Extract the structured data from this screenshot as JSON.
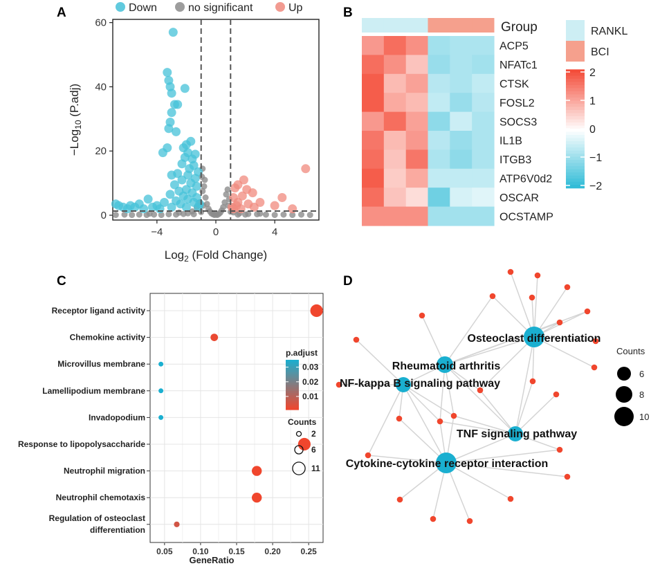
{
  "panels": {
    "a": "A",
    "b": "B",
    "c": "C",
    "d": "D"
  },
  "colors": {
    "down": "#45c1d8",
    "ns": "#8c8c8c",
    "up": "#f08a7e",
    "heat_low": "#1cb5d3",
    "heat_high": "#f3432f",
    "rankl": "#cdeef4",
    "bci": "#f5a08d",
    "node_red": "#f0462d",
    "node_blue": "#1aafd0",
    "edge": "#d4d4d4"
  },
  "chart_data": [
    {
      "type": "scatter",
      "panel": "A",
      "title": "",
      "xlabel_prefix": "Log",
      "xlabel_sub": "2",
      "xlabel_suffix": " (Fold Change)",
      "ylabel_prefix": "−Log",
      "ylabel_sub": "10",
      "ylabel_suffix": " (P.adj)",
      "xlim": [
        -7,
        7
      ],
      "ylim": [
        -1.5,
        61
      ],
      "xticks": [
        -4,
        0,
        4
      ],
      "xtick_labels": [
        "−4",
        "0",
        "4"
      ],
      "yticks": [
        0,
        20,
        40,
        60
      ],
      "ytick_labels": [
        "0",
        "20",
        "40",
        "60"
      ],
      "vlines": [
        -1,
        1
      ],
      "hline": 1.3,
      "legend": [
        {
          "key": "down",
          "label": "Down"
        },
        {
          "key": "ns",
          "label": "no significant"
        },
        {
          "key": "up",
          "label": "Up"
        }
      ],
      "series": [
        {
          "name": "Down",
          "color_key": "down",
          "points": [
            [
              -2.9,
              57
            ],
            [
              -3.3,
              44.5
            ],
            [
              -3.1,
              40
            ],
            [
              -3.0,
              38
            ],
            [
              -3.2,
              42
            ],
            [
              -2.1,
              39.5
            ],
            [
              -2.6,
              34.5
            ],
            [
              -2.8,
              34.5
            ],
            [
              -3.0,
              32
            ],
            [
              -3.1,
              29
            ],
            [
              -3.2,
              27
            ],
            [
              -2.7,
              26
            ],
            [
              -3.6,
              19.5
            ],
            [
              -3.3,
              21
            ],
            [
              -2.2,
              21
            ],
            [
              -1.9,
              19.5
            ],
            [
              -2.1,
              18
            ],
            [
              -1.7,
              23
            ],
            [
              -2.0,
              22
            ],
            [
              -1.6,
              17.5
            ],
            [
              -1.4,
              19
            ],
            [
              -2.3,
              16
            ],
            [
              -1.5,
              15.5
            ],
            [
              -1.8,
              14.5
            ],
            [
              -1.2,
              13.5
            ],
            [
              -2.6,
              13
            ],
            [
              -3.0,
              12.5
            ],
            [
              -1.9,
              12.5
            ],
            [
              -1.4,
              11.5
            ],
            [
              -2.3,
              11
            ],
            [
              -1.7,
              10
            ],
            [
              -2.8,
              9.5
            ],
            [
              -1.3,
              9
            ],
            [
              -2.0,
              8
            ],
            [
              -2.5,
              7.5
            ],
            [
              -1.6,
              7
            ],
            [
              -3.1,
              6.5
            ],
            [
              -2.2,
              6
            ],
            [
              -1.3,
              5.5
            ],
            [
              -1.9,
              5
            ],
            [
              -2.7,
              4.5
            ],
            [
              -3.5,
              4
            ],
            [
              -1.5,
              4
            ],
            [
              -2.4,
              3.5
            ],
            [
              -4.6,
              5
            ],
            [
              -5.2,
              3.5
            ],
            [
              -5.8,
              3
            ],
            [
              -6.3,
              2.5
            ],
            [
              -6.6,
              3
            ],
            [
              -6.0,
              2
            ],
            [
              -4.0,
              3
            ],
            [
              -3.8,
              2
            ],
            [
              -4.3,
              2.5
            ],
            [
              -3.0,
              2.5
            ],
            [
              -2.0,
              2.5
            ],
            [
              -1.2,
              2.5
            ],
            [
              -5.5,
              2.5
            ],
            [
              -4.9,
              2
            ],
            [
              -6.8,
              3.5
            ],
            [
              -1.1,
              3.5
            ]
          ]
        },
        {
          "name": "no significant",
          "color_key": "ns",
          "points": [
            [
              -6.8,
              0.1
            ],
            [
              -6.2,
              0.2
            ],
            [
              -5.7,
              0.1
            ],
            [
              -5.2,
              0.2
            ],
            [
              -4.7,
              0.1
            ],
            [
              -4.2,
              0.2
            ],
            [
              -3.7,
              0.1
            ],
            [
              -3.2,
              0.3
            ],
            [
              -2.7,
              0.2
            ],
            [
              -2.2,
              0.4
            ],
            [
              -1.9,
              0.6
            ],
            [
              -1.6,
              1.2
            ],
            [
              -1.3,
              2.5
            ],
            [
              -1.1,
              4
            ],
            [
              -0.9,
              7.5
            ],
            [
              -0.8,
              9
            ],
            [
              -0.7,
              5.5
            ],
            [
              -0.6,
              3.5
            ],
            [
              -0.5,
              2
            ],
            [
              -0.4,
              1.2
            ],
            [
              -0.3,
              0.6
            ],
            [
              -0.2,
              0.3
            ],
            [
              -0.1,
              0.1
            ],
            [
              0.0,
              0.2
            ],
            [
              0.1,
              0.1
            ],
            [
              0.2,
              0.4
            ],
            [
              0.3,
              0.8
            ],
            [
              0.4,
              1.5
            ],
            [
              0.5,
              2.5
            ],
            [
              0.6,
              4
            ],
            [
              0.7,
              6.5
            ],
            [
              0.8,
              8
            ],
            [
              0.9,
              5
            ],
            [
              1.2,
              0.9
            ],
            [
              1.6,
              0.6
            ],
            [
              2.2,
              0.4
            ],
            [
              2.8,
              0.3
            ],
            [
              3.4,
              0.2
            ],
            [
              4.0,
              0.1
            ],
            [
              4.6,
              0.2
            ],
            [
              5.2,
              0.1
            ],
            [
              5.8,
              0.2
            ],
            [
              6.4,
              0.1
            ],
            [
              -1.0,
              1.0
            ],
            [
              1.0,
              1.1
            ],
            [
              -0.85,
              3
            ],
            [
              0.85,
              3
            ],
            [
              -2.5,
              0.8
            ],
            [
              2.0,
              0.2
            ],
            [
              -4.5,
              0.5
            ],
            [
              3.0,
              0.5
            ],
            [
              -1.5,
              0.3
            ],
            [
              1.5,
              0.2
            ],
            [
              -0.95,
              12
            ],
            [
              -0.9,
              14.5
            ],
            [
              -0.75,
              11
            ]
          ]
        },
        {
          "name": "Up",
          "color_key": "up",
          "points": [
            [
              6.1,
              14.5
            ],
            [
              1.9,
              11
            ],
            [
              1.5,
              9.5
            ],
            [
              2.1,
              8
            ],
            [
              2.5,
              7
            ],
            [
              1.3,
              8.5
            ],
            [
              1.8,
              6
            ],
            [
              1.2,
              5.5
            ],
            [
              1.5,
              4
            ],
            [
              2.2,
              3.5
            ],
            [
              3.0,
              4
            ],
            [
              4.5,
              5.5
            ],
            [
              4.0,
              3
            ],
            [
              5.2,
              2
            ],
            [
              1.4,
              3
            ],
            [
              1.1,
              2.5
            ],
            [
              1.7,
              2
            ],
            [
              1.2,
              2
            ],
            [
              2.6,
              2.5
            ]
          ]
        }
      ]
    },
    {
      "type": "heatmap",
      "panel": "B",
      "title": "",
      "rows": [
        "ACP5",
        "NFATc1",
        "CTSK",
        "FOSL2",
        "SOCS3",
        "IL1B",
        "ITGB3",
        "ATP6V0d2",
        "OSCAR",
        "OCSTAMP"
      ],
      "groups": [
        "RANKL",
        "RANKL",
        "RANKL",
        "BCI",
        "BCI",
        "BCI"
      ],
      "group_title": "Group",
      "legend_groups": [
        "RANKL",
        "BCI"
      ],
      "values": [
        [
          1.2,
          1.7,
          1.3,
          -0.9,
          -0.8,
          -0.8
        ],
        [
          1.7,
          1.3,
          0.7,
          -1.0,
          -0.8,
          -0.9
        ],
        [
          1.9,
          0.8,
          1.1,
          -0.7,
          -0.8,
          -0.6
        ],
        [
          1.9,
          1.0,
          0.8,
          -0.6,
          -1.0,
          -0.7
        ],
        [
          1.2,
          1.7,
          1.1,
          -1.1,
          -0.5,
          -0.8
        ],
        [
          1.6,
          0.8,
          1.2,
          -0.7,
          -1.0,
          -0.8
        ],
        [
          1.7,
          0.7,
          1.6,
          -0.8,
          -1.1,
          -0.8
        ],
        [
          1.9,
          0.6,
          1.0,
          -0.6,
          -0.6,
          -0.6
        ],
        [
          1.7,
          0.7,
          0.4,
          -1.4,
          -0.4,
          -0.3
        ],
        [
          1.3,
          1.3,
          1.3,
          -0.9,
          -0.9,
          -0.9
        ]
      ],
      "scale_ticks": [
        2,
        1,
        0,
        -1,
        -2
      ],
      "scale_labels": [
        "2",
        "1",
        "0",
        "−1",
        "−2"
      ],
      "vrange": [
        -2.2,
        2.2
      ]
    },
    {
      "type": "scatter",
      "panel": "C",
      "title": "",
      "xlabel": "GeneRatio",
      "ylabel": "",
      "xlim": [
        0.03,
        0.27
      ],
      "xticks": [
        0.05,
        0.1,
        0.15,
        0.2,
        0.25
      ],
      "xtick_labels": [
        "0.05",
        "0.10",
        "0.15",
        "0.20",
        "0.25"
      ],
      "categories": [
        "Receptor ligand activity",
        "Chemokine activity",
        "Microvillus membrane",
        "Lamellipodium membrane",
        "Invadopodium",
        "Response to lipopolysaccharide",
        "Neutrophil migration",
        "Neutrophil chemotaxis",
        "Regulation of osteoclast differentiation"
      ],
      "label_lines": [
        [
          "Receptor ligand activity"
        ],
        [
          "Chemokine activity"
        ],
        [
          "Microvillus membrane"
        ],
        [
          "Lamellipodium membrane"
        ],
        [
          "Invadopodium"
        ],
        [
          "Response to lipopolysaccharide"
        ],
        [
          "Neutrophil migration"
        ],
        [
          "Neutrophil chemotaxis"
        ],
        [
          "Regulation of osteoclast",
          "differentiation"
        ]
      ],
      "gene_ratio": [
        0.261,
        0.119,
        0.045,
        0.045,
        0.045,
        0.244,
        0.178,
        0.178,
        0.067
      ],
      "counts": [
        11,
        5,
        2,
        2,
        2,
        11,
        8,
        8,
        3
      ],
      "p_adjust": [
        0.001,
        0.002,
        0.035,
        0.035,
        0.035,
        0.001,
        0.001,
        0.001,
        0.006
      ],
      "color_title": "p.adjust",
      "color_ticks": [
        0.03,
        0.02,
        0.01
      ],
      "color_tick_labels": [
        "0.03",
        "0.02",
        "0.01"
      ],
      "color_range": [
        0.001,
        0.035
      ],
      "size_title": "Counts",
      "size_ticks": [
        2,
        6,
        11
      ],
      "size_tick_labels": [
        "2",
        "6",
        "11"
      ]
    },
    {
      "type": "network",
      "panel": "D",
      "title": "",
      "hubs": [
        {
          "label": "Osteoclast differentiation",
          "count": 10
        },
        {
          "label": "Rheumatoid arthritis",
          "count": 8
        },
        {
          "label": "NF-kappa B signaling pathway",
          "count": 7
        },
        {
          "label": "TNF signaling pathway",
          "count": 7
        },
        {
          "label": "Cytokine-cytokine receptor interaction",
          "count": 11
        }
      ],
      "size_title": "Counts",
      "size_ticks": [
        6,
        8,
        10
      ],
      "size_tick_labels": [
        "6",
        "8",
        "10"
      ]
    }
  ]
}
